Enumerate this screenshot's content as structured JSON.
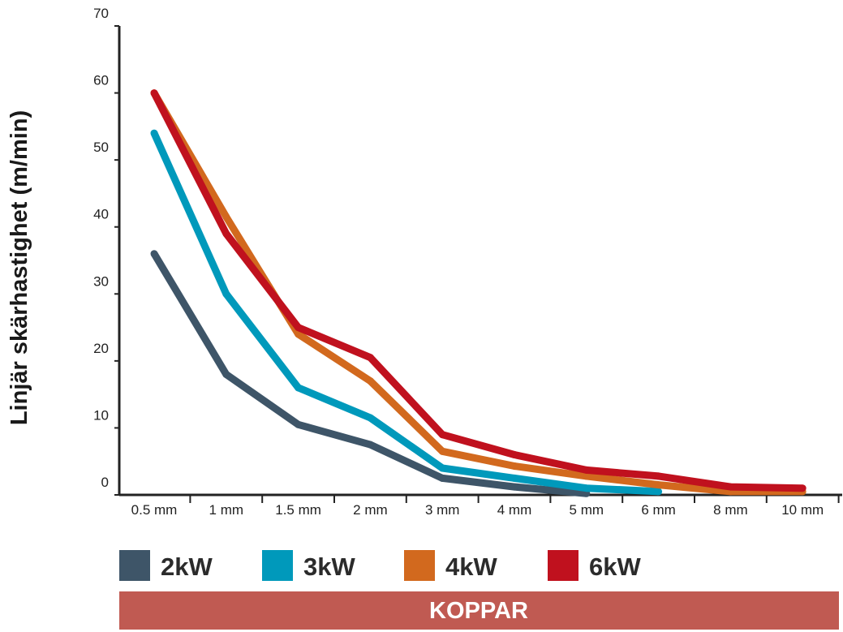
{
  "chart_data": {
    "type": "line",
    "title": "",
    "xlabel": "",
    "ylabel": "Linjär skärhastighet (m/min)",
    "categories": [
      "0.5 mm",
      "1 mm",
      "1.5 mm",
      "2 mm",
      "3 mm",
      "4 mm",
      "5 mm",
      "6 mm",
      "8 mm",
      "10 mm"
    ],
    "ylim": [
      0,
      70
    ],
    "yticks": [
      "0",
      "10",
      "20",
      "30",
      "40",
      "50",
      "60",
      "70"
    ],
    "grid": false,
    "legend_position": "bottom",
    "series": [
      {
        "name": "2kW",
        "color": "#3e5568",
        "values": [
          36,
          18,
          10.5,
          7.5,
          2.5,
          1.2,
          0.2,
          null,
          null,
          null
        ]
      },
      {
        "name": "3kW",
        "color": "#0099bb",
        "values": [
          54,
          30,
          16,
          11.5,
          4,
          2.5,
          1,
          0.5,
          null,
          null
        ]
      },
      {
        "name": "4kW",
        "color": "#d2691e",
        "values": [
          60,
          41.5,
          24,
          17,
          6.5,
          4.3,
          2.8,
          1.5,
          0.5,
          0.5
        ]
      },
      {
        "name": "6kW",
        "color": "#c0111e",
        "values": [
          60,
          39,
          25,
          20.5,
          9,
          6,
          3.7,
          2.8,
          1.2,
          1
        ]
      }
    ]
  },
  "banner": {
    "label": "KOPPAR",
    "color": "#c05a52"
  }
}
